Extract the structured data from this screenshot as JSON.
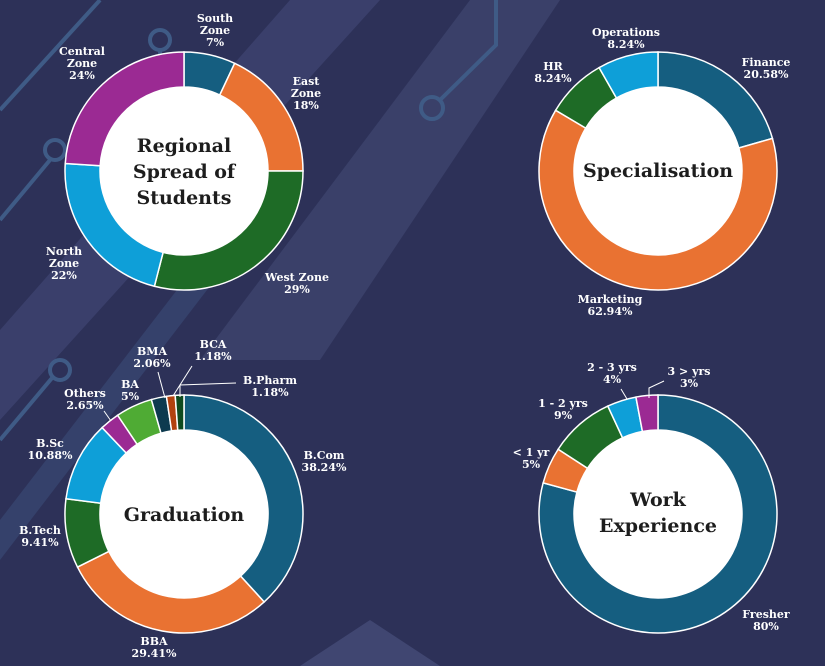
{
  "background_color": "#2d3158",
  "chart_data": [
    {
      "type": "pie",
      "donut": true,
      "title": "Regional Spread of Students",
      "categories": [
        "South Zone",
        "East Zone",
        "West Zone",
        "North Zone",
        "Central Zone"
      ],
      "values": [
        7,
        18,
        29,
        22,
        24
      ],
      "value_labels": [
        "7%",
        "18%",
        "29%",
        "22%",
        "24%"
      ],
      "colors": [
        "#155e80",
        "#e97232",
        "#1e6b26",
        "#0e9fd8",
        "#9b2a93"
      ]
    },
    {
      "type": "pie",
      "donut": true,
      "title": "Specialisation",
      "categories": [
        "Finance",
        "Marketing",
        "HR",
        "Operations"
      ],
      "values": [
        20.58,
        62.94,
        8.24,
        8.24
      ],
      "value_labels": [
        "20.58%",
        "62.94%",
        "8.24%",
        "8.24%"
      ],
      "colors": [
        "#155e80",
        "#e97232",
        "#1e6b26",
        "#0e9fd8"
      ]
    },
    {
      "type": "pie",
      "donut": true,
      "title": "Graduation",
      "categories": [
        "B.Com",
        "BBA",
        "B.Tech",
        "B.Sc",
        "Others",
        "BA",
        "BMA",
        "BCA",
        "B.Pharm"
      ],
      "values": [
        38.24,
        29.41,
        9.41,
        10.88,
        2.65,
        5,
        2.06,
        1.18,
        1.18
      ],
      "value_labels": [
        "38.24%",
        "29.41%",
        "9.41%",
        "10.88%",
        "2.65%",
        "5%",
        "2.06%",
        "1.18%",
        "1.18%"
      ],
      "colors": [
        "#155e80",
        "#e97232",
        "#1e6b26",
        "#0e9fd8",
        "#9b2a93",
        "#4fab34",
        "#0d3a4f",
        "#b2420f",
        "#0f4a1f"
      ]
    },
    {
      "type": "pie",
      "donut": true,
      "title": "Work Experience",
      "categories": [
        "Fresher",
        "< 1 yr",
        "1 - 2 yrs",
        "2 - 3 yrs",
        "3 > yrs"
      ],
      "values": [
        80,
        5,
        9,
        4,
        3
      ],
      "value_labels": [
        "80%",
        "5%",
        "9%",
        "4%",
        "3%"
      ],
      "colors": [
        "#155e80",
        "#e97232",
        "#1e6b26",
        "#0e9fd8",
        "#9b2a93"
      ]
    }
  ]
}
